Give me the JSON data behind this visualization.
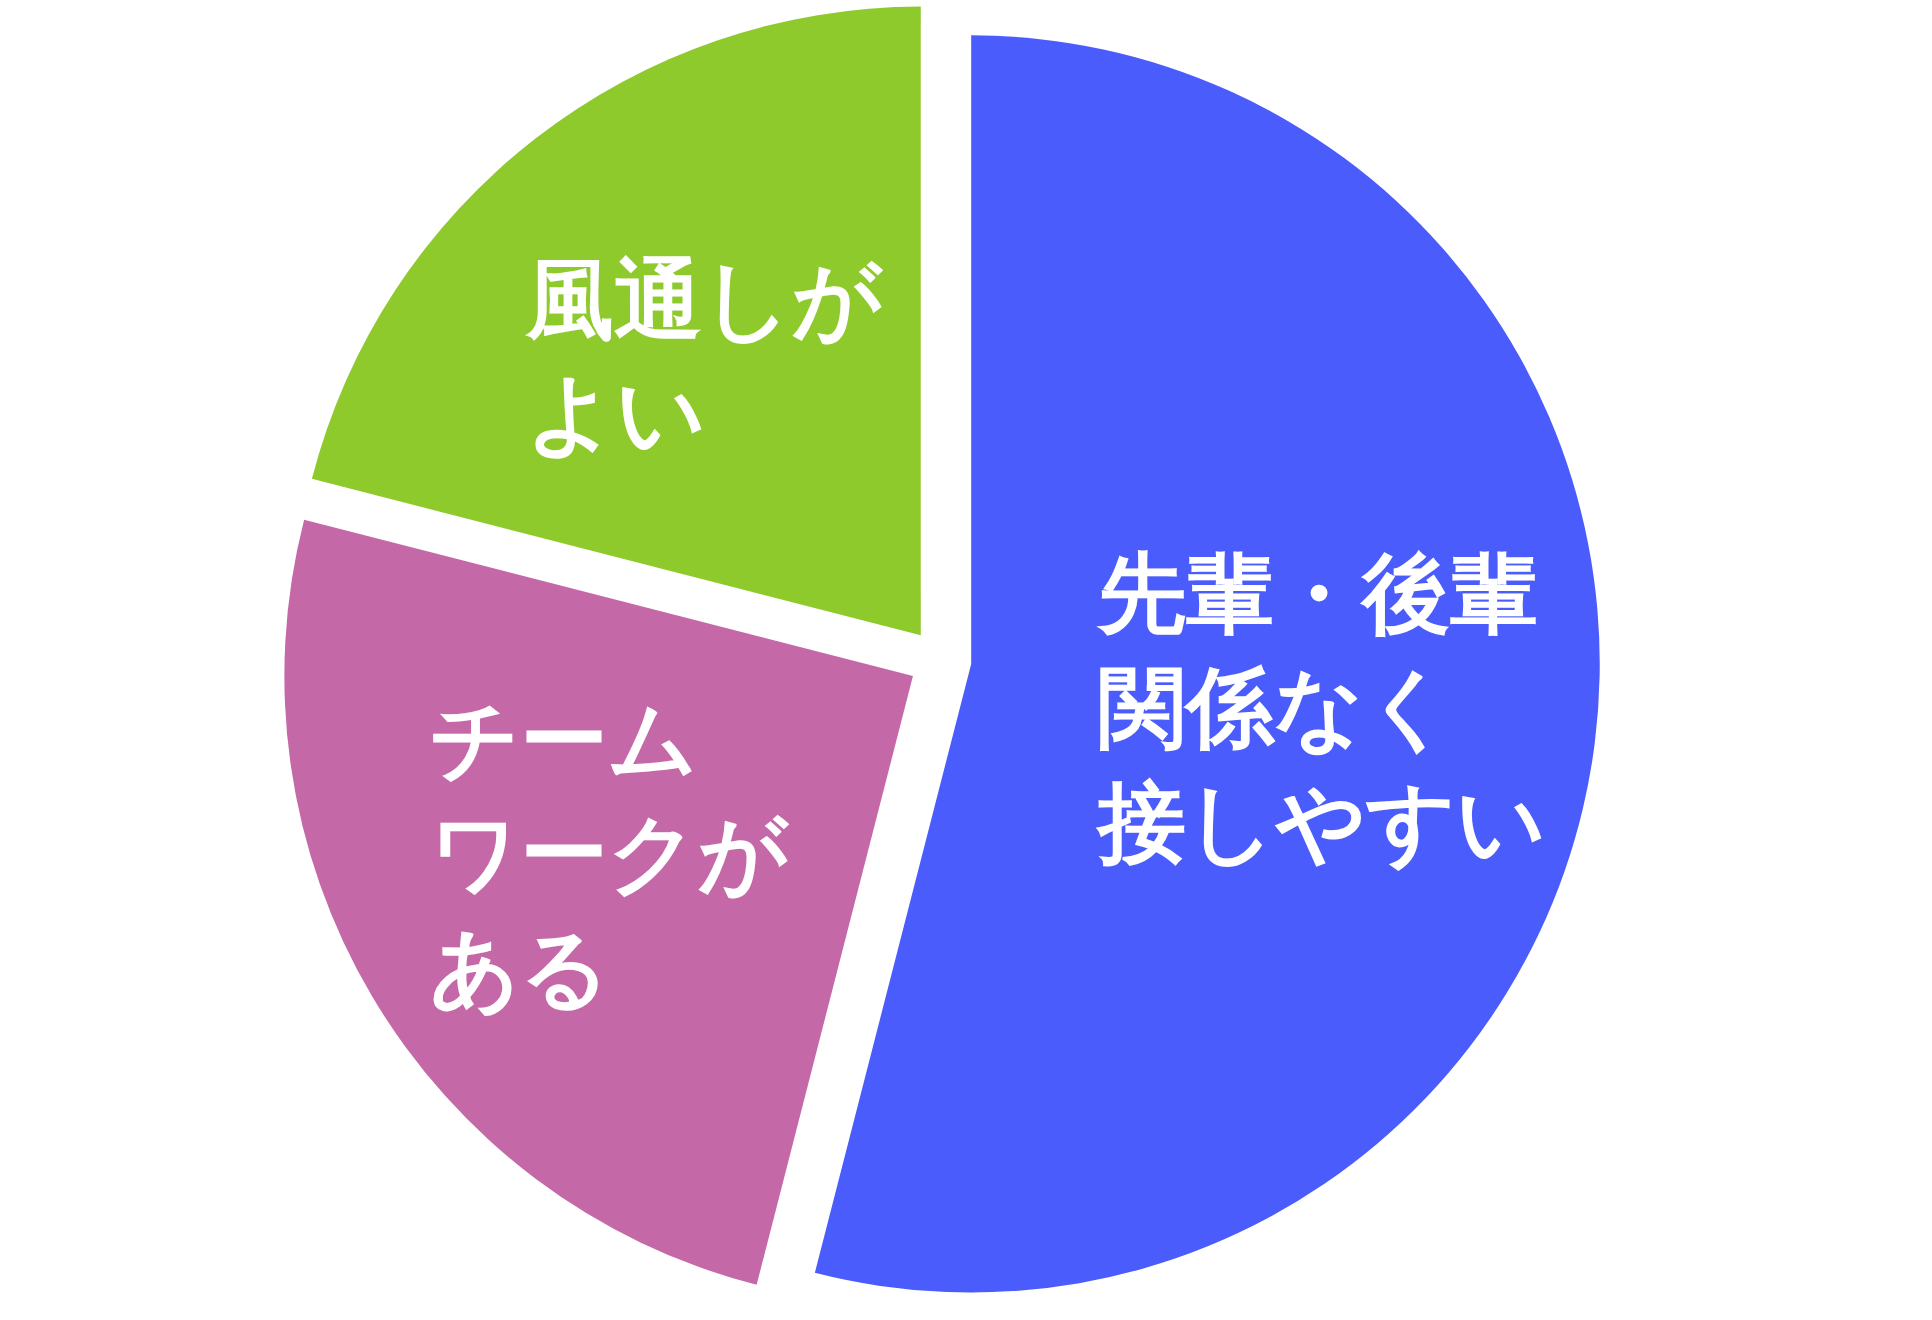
{
  "chart_data": {
    "type": "pie",
    "categories": [
      "先輩・後輩関係なく接しやすい",
      "チームワークがある",
      "風通しがよい"
    ],
    "values": [
      54,
      25,
      21
    ],
    "colors": [
      "#4a5cfc",
      "#c468a8",
      "#8fca2c"
    ],
    "legend": false
  }
}
